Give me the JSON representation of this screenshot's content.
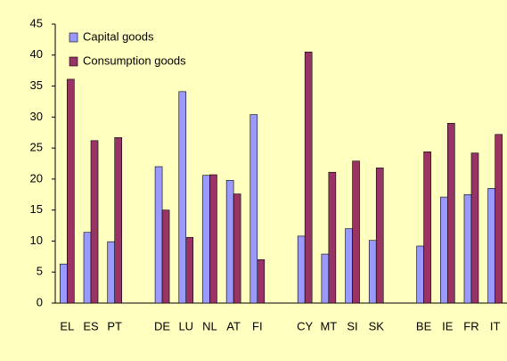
{
  "chart_data": {
    "type": "bar",
    "categories": [
      "EL",
      "ES",
      "PT",
      null,
      "DE",
      "LU",
      "NL",
      "AT",
      "FI",
      null,
      "CY",
      "MT",
      "SI",
      "SK",
      null,
      "BE",
      "IE",
      "FR",
      "IT"
    ],
    "series": [
      {
        "name": "Capital goods",
        "color": "#9999ff",
        "values": [
          6.3,
          11.4,
          9.9,
          null,
          22.0,
          34.1,
          20.6,
          19.8,
          30.4,
          null,
          10.8,
          7.9,
          12.0,
          10.1,
          null,
          9.2,
          17.1,
          17.5,
          18.5
        ]
      },
      {
        "name": "Consumption goods",
        "color": "#993366",
        "values": [
          36.1,
          26.2,
          26.7,
          null,
          15.0,
          10.6,
          20.7,
          17.6,
          7.0,
          null,
          40.5,
          21.1,
          22.9,
          21.8,
          null,
          24.4,
          29.0,
          24.2,
          27.2
        ]
      }
    ],
    "ylim": [
      0,
      45
    ],
    "yticks": [
      0,
      5,
      10,
      15,
      20,
      25,
      30,
      35,
      40,
      45
    ],
    "grid": false,
    "legend": "top-left"
  }
}
